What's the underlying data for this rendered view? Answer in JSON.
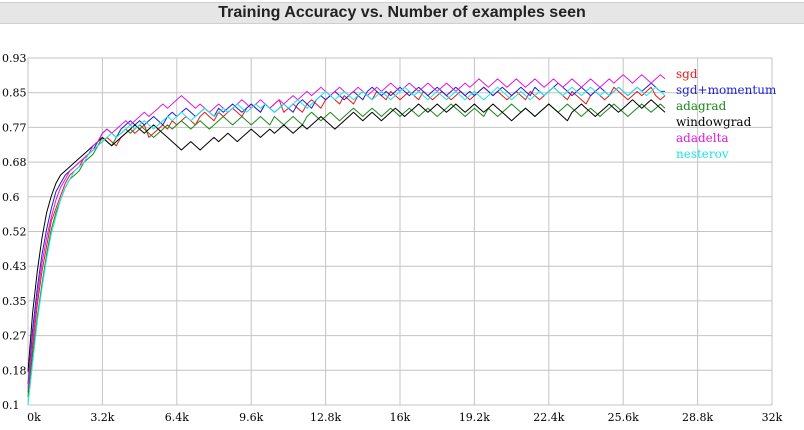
{
  "chart_data": {
    "type": "line",
    "title": "Training Accuracy vs. Number of examples seen",
    "xlabel": "",
    "ylabel": "",
    "xlim": [
      0,
      32000
    ],
    "ylim": [
      0.1,
      0.93
    ],
    "x_ticks": [
      "0k",
      "3.2k",
      "6.4k",
      "9.6k",
      "12.8k",
      "16k",
      "19.2k",
      "22.4k",
      "25.6k",
      "28.8k",
      "32k"
    ],
    "y_ticks": [
      "0.1",
      "0.18",
      "0.27",
      "0.35",
      "0.43",
      "0.52",
      "0.6",
      "0.68",
      "0.77",
      "0.85",
      "0.93"
    ],
    "grid": true,
    "legend_position": "top-right",
    "x": [
      0,
      200,
      400,
      600,
      800,
      1000,
      1200,
      1400,
      1600,
      1800,
      2000,
      2200,
      2400,
      2600,
      2800,
      3000,
      3200,
      3400,
      3600,
      3800,
      4000,
      4200,
      4400,
      4600,
      4800,
      5000,
      5200,
      5400,
      5600,
      5800,
      6000,
      6200,
      6400,
      6600,
      6800,
      7000,
      7200,
      7400,
      7600,
      7800,
      8000,
      8200,
      8400,
      8600,
      8800,
      9000,
      9200,
      9400,
      9600,
      9800,
      10000,
      10200,
      10400,
      10600,
      10800,
      11000,
      11200,
      11400,
      11600,
      11800,
      12000,
      12200,
      12400,
      12600,
      12800,
      13000,
      13200,
      13400,
      13600,
      13800,
      14000,
      14200,
      14400,
      14600,
      14800,
      15000,
      15200,
      15400,
      15600,
      15800,
      16000,
      16200,
      16400,
      16600,
      16800,
      17000,
      17200,
      17400,
      17600,
      17800,
      18000,
      18200,
      18400,
      18600,
      18800,
      19000,
      19200,
      19400,
      19600,
      19800,
      20000,
      20200,
      20400,
      20600,
      20800,
      21000,
      21200,
      21400,
      21600,
      21800,
      22000,
      22200,
      22400,
      22600,
      22800,
      23000,
      23200,
      23400,
      23600,
      23800,
      24000,
      24200,
      24400,
      24600,
      24800,
      25000,
      25200,
      25400,
      25600,
      25800,
      26000,
      26200,
      26400,
      26600,
      26800,
      27000,
      27200,
      27400
    ],
    "series": [
      {
        "name": "sgd",
        "color": "#e41a1c",
        "values": [
          0.13,
          0.24,
          0.34,
          0.42,
          0.48,
          0.54,
          0.57,
          0.6,
          0.63,
          0.65,
          0.66,
          0.67,
          0.69,
          0.7,
          0.71,
          0.72,
          0.73,
          0.74,
          0.73,
          0.72,
          0.74,
          0.75,
          0.76,
          0.75,
          0.76,
          0.77,
          0.74,
          0.75,
          0.76,
          0.77,
          0.76,
          0.78,
          0.77,
          0.78,
          0.79,
          0.78,
          0.77,
          0.79,
          0.8,
          0.79,
          0.78,
          0.8,
          0.79,
          0.8,
          0.81,
          0.8,
          0.79,
          0.81,
          0.82,
          0.81,
          0.8,
          0.82,
          0.81,
          0.82,
          0.83,
          0.8,
          0.81,
          0.82,
          0.81,
          0.8,
          0.82,
          0.83,
          0.82,
          0.81,
          0.83,
          0.84,
          0.83,
          0.82,
          0.84,
          0.83,
          0.82,
          0.84,
          0.85,
          0.84,
          0.83,
          0.85,
          0.84,
          0.83,
          0.85,
          0.84,
          0.83,
          0.84,
          0.85,
          0.84,
          0.83,
          0.85,
          0.84,
          0.83,
          0.84,
          0.85,
          0.84,
          0.83,
          0.84,
          0.85,
          0.84,
          0.83,
          0.84,
          0.85,
          0.86,
          0.85,
          0.84,
          0.85,
          0.84,
          0.83,
          0.84,
          0.85,
          0.84,
          0.83,
          0.85,
          0.84,
          0.83,
          0.84,
          0.85,
          0.86,
          0.85,
          0.84,
          0.83,
          0.85,
          0.84,
          0.83,
          0.82,
          0.84,
          0.85,
          0.84,
          0.83,
          0.84,
          0.86,
          0.85,
          0.84,
          0.83,
          0.84,
          0.85,
          0.84,
          0.85,
          0.86,
          0.84,
          0.83,
          0.84
        ]
      },
      {
        "name": "sgd+momentum",
        "color": "#1f1fd4",
        "values": [
          0.15,
          0.28,
          0.38,
          0.46,
          0.52,
          0.57,
          0.61,
          0.63,
          0.65,
          0.66,
          0.67,
          0.68,
          0.69,
          0.7,
          0.71,
          0.73,
          0.75,
          0.76,
          0.75,
          0.74,
          0.76,
          0.77,
          0.78,
          0.77,
          0.78,
          0.77,
          0.78,
          0.79,
          0.78,
          0.77,
          0.79,
          0.8,
          0.79,
          0.8,
          0.81,
          0.8,
          0.79,
          0.8,
          0.81,
          0.8,
          0.79,
          0.81,
          0.8,
          0.81,
          0.82,
          0.81,
          0.8,
          0.81,
          0.82,
          0.81,
          0.8,
          0.82,
          0.81,
          0.8,
          0.81,
          0.82,
          0.81,
          0.8,
          0.82,
          0.83,
          0.82,
          0.81,
          0.83,
          0.84,
          0.83,
          0.84,
          0.85,
          0.84,
          0.83,
          0.84,
          0.85,
          0.84,
          0.83,
          0.85,
          0.86,
          0.85,
          0.84,
          0.85,
          0.84,
          0.85,
          0.86,
          0.85,
          0.84,
          0.85,
          0.86,
          0.85,
          0.84,
          0.85,
          0.86,
          0.85,
          0.84,
          0.85,
          0.86,
          0.85,
          0.84,
          0.85,
          0.84,
          0.85,
          0.86,
          0.85,
          0.84,
          0.85,
          0.86,
          0.85,
          0.84,
          0.85,
          0.86,
          0.85,
          0.84,
          0.86,
          0.85,
          0.84,
          0.85,
          0.86,
          0.87,
          0.86,
          0.85,
          0.84,
          0.85,
          0.86,
          0.85,
          0.84,
          0.85,
          0.86,
          0.85,
          0.84,
          0.85,
          0.86,
          0.85,
          0.84,
          0.85,
          0.86,
          0.85,
          0.86,
          0.87,
          0.86,
          0.85,
          0.85
        ]
      },
      {
        "name": "adagrad",
        "color": "#1a8a1a",
        "values": [
          0.12,
          0.22,
          0.31,
          0.39,
          0.46,
          0.52,
          0.56,
          0.59,
          0.62,
          0.64,
          0.65,
          0.66,
          0.68,
          0.69,
          0.7,
          0.72,
          0.74,
          0.73,
          0.72,
          0.74,
          0.75,
          0.76,
          0.75,
          0.76,
          0.77,
          0.76,
          0.75,
          0.74,
          0.75,
          0.76,
          0.77,
          0.76,
          0.77,
          0.78,
          0.77,
          0.76,
          0.77,
          0.78,
          0.77,
          0.76,
          0.77,
          0.78,
          0.79,
          0.78,
          0.77,
          0.78,
          0.79,
          0.78,
          0.77,
          0.78,
          0.79,
          0.78,
          0.77,
          0.79,
          0.78,
          0.77,
          0.78,
          0.79,
          0.78,
          0.77,
          0.79,
          0.8,
          0.79,
          0.78,
          0.79,
          0.8,
          0.79,
          0.78,
          0.79,
          0.8,
          0.81,
          0.8,
          0.79,
          0.8,
          0.81,
          0.8,
          0.79,
          0.8,
          0.81,
          0.8,
          0.79,
          0.8,
          0.81,
          0.8,
          0.79,
          0.8,
          0.81,
          0.8,
          0.79,
          0.8,
          0.81,
          0.82,
          0.81,
          0.8,
          0.79,
          0.8,
          0.81,
          0.8,
          0.79,
          0.81,
          0.8,
          0.79,
          0.8,
          0.81,
          0.82,
          0.81,
          0.8,
          0.81,
          0.8,
          0.79,
          0.8,
          0.81,
          0.82,
          0.81,
          0.8,
          0.81,
          0.82,
          0.81,
          0.8,
          0.79,
          0.8,
          0.81,
          0.8,
          0.79,
          0.8,
          0.81,
          0.82,
          0.81,
          0.8,
          0.79,
          0.8,
          0.81,
          0.82,
          0.81,
          0.8,
          0.81,
          0.82,
          0.81
        ]
      },
      {
        "name": "windowgrad",
        "color": "#000000",
        "values": [
          0.18,
          0.32,
          0.42,
          0.5,
          0.56,
          0.6,
          0.63,
          0.65,
          0.66,
          0.67,
          0.68,
          0.69,
          0.7,
          0.71,
          0.72,
          0.73,
          0.74,
          0.73,
          0.72,
          0.73,
          0.74,
          0.75,
          0.76,
          0.77,
          0.76,
          0.75,
          0.76,
          0.77,
          0.76,
          0.75,
          0.74,
          0.73,
          0.72,
          0.71,
          0.72,
          0.73,
          0.72,
          0.71,
          0.72,
          0.73,
          0.74,
          0.73,
          0.74,
          0.75,
          0.74,
          0.73,
          0.74,
          0.75,
          0.76,
          0.75,
          0.74,
          0.75,
          0.76,
          0.75,
          0.76,
          0.77,
          0.76,
          0.75,
          0.76,
          0.77,
          0.76,
          0.77,
          0.78,
          0.79,
          0.78,
          0.77,
          0.76,
          0.77,
          0.78,
          0.79,
          0.8,
          0.79,
          0.78,
          0.79,
          0.8,
          0.79,
          0.78,
          0.79,
          0.8,
          0.81,
          0.8,
          0.79,
          0.8,
          0.81,
          0.82,
          0.81,
          0.8,
          0.81,
          0.82,
          0.81,
          0.8,
          0.81,
          0.82,
          0.81,
          0.8,
          0.81,
          0.82,
          0.81,
          0.8,
          0.81,
          0.82,
          0.81,
          0.8,
          0.79,
          0.78,
          0.79,
          0.8,
          0.81,
          0.8,
          0.79,
          0.8,
          0.81,
          0.82,
          0.81,
          0.8,
          0.79,
          0.78,
          0.8,
          0.81,
          0.82,
          0.81,
          0.8,
          0.79,
          0.8,
          0.81,
          0.82,
          0.81,
          0.8,
          0.81,
          0.82,
          0.83,
          0.82,
          0.81,
          0.82,
          0.83,
          0.82,
          0.81,
          0.8
        ]
      },
      {
        "name": "adadelta",
        "color": "#e01ae0",
        "values": [
          0.14,
          0.26,
          0.36,
          0.44,
          0.5,
          0.55,
          0.59,
          0.62,
          0.64,
          0.66,
          0.67,
          0.68,
          0.69,
          0.7,
          0.72,
          0.73,
          0.75,
          0.76,
          0.75,
          0.76,
          0.77,
          0.78,
          0.77,
          0.78,
          0.79,
          0.8,
          0.79,
          0.8,
          0.81,
          0.82,
          0.81,
          0.82,
          0.83,
          0.84,
          0.83,
          0.82,
          0.81,
          0.82,
          0.81,
          0.8,
          0.81,
          0.82,
          0.81,
          0.8,
          0.81,
          0.82,
          0.83,
          0.82,
          0.81,
          0.82,
          0.83,
          0.82,
          0.81,
          0.82,
          0.83,
          0.82,
          0.83,
          0.84,
          0.83,
          0.84,
          0.85,
          0.84,
          0.85,
          0.86,
          0.85,
          0.84,
          0.85,
          0.86,
          0.85,
          0.84,
          0.85,
          0.86,
          0.85,
          0.84,
          0.85,
          0.86,
          0.85,
          0.86,
          0.87,
          0.86,
          0.85,
          0.86,
          0.87,
          0.86,
          0.85,
          0.86,
          0.87,
          0.86,
          0.85,
          0.86,
          0.87,
          0.86,
          0.85,
          0.86,
          0.87,
          0.86,
          0.87,
          0.88,
          0.87,
          0.86,
          0.87,
          0.88,
          0.87,
          0.86,
          0.87,
          0.88,
          0.87,
          0.86,
          0.87,
          0.88,
          0.87,
          0.86,
          0.87,
          0.88,
          0.87,
          0.86,
          0.87,
          0.88,
          0.87,
          0.86,
          0.87,
          0.88,
          0.87,
          0.86,
          0.87,
          0.88,
          0.87,
          0.88,
          0.89,
          0.88,
          0.87,
          0.88,
          0.89,
          0.88,
          0.87,
          0.88,
          0.89,
          0.88
        ]
      },
      {
        "name": "nesterov",
        "color": "#1ae6e6",
        "values": [
          0.1,
          0.2,
          0.3,
          0.38,
          0.45,
          0.51,
          0.55,
          0.59,
          0.62,
          0.64,
          0.66,
          0.67,
          0.68,
          0.7,
          0.71,
          0.72,
          0.73,
          0.74,
          0.75,
          0.74,
          0.75,
          0.76,
          0.77,
          0.76,
          0.77,
          0.78,
          0.77,
          0.76,
          0.77,
          0.78,
          0.79,
          0.78,
          0.79,
          0.8,
          0.79,
          0.78,
          0.79,
          0.8,
          0.81,
          0.8,
          0.79,
          0.8,
          0.81,
          0.8,
          0.81,
          0.82,
          0.81,
          0.8,
          0.81,
          0.82,
          0.81,
          0.82,
          0.81,
          0.8,
          0.81,
          0.82,
          0.81,
          0.82,
          0.83,
          0.82,
          0.81,
          0.82,
          0.83,
          0.84,
          0.85,
          0.84,
          0.83,
          0.84,
          0.85,
          0.84,
          0.83,
          0.84,
          0.85,
          0.84,
          0.83,
          0.84,
          0.85,
          0.84,
          0.83,
          0.84,
          0.85,
          0.86,
          0.85,
          0.84,
          0.85,
          0.84,
          0.83,
          0.84,
          0.85,
          0.84,
          0.83,
          0.84,
          0.85,
          0.84,
          0.83,
          0.84,
          0.85,
          0.84,
          0.83,
          0.84,
          0.85,
          0.86,
          0.85,
          0.84,
          0.83,
          0.84,
          0.85,
          0.84,
          0.83,
          0.84,
          0.85,
          0.84,
          0.85,
          0.86,
          0.85,
          0.84,
          0.85,
          0.86,
          0.85,
          0.84,
          0.85,
          0.86,
          0.85,
          0.84,
          0.85,
          0.84,
          0.85,
          0.86,
          0.85,
          0.84,
          0.85,
          0.86,
          0.85,
          0.84,
          0.85,
          0.86,
          0.85,
          0.84
        ]
      }
    ]
  }
}
